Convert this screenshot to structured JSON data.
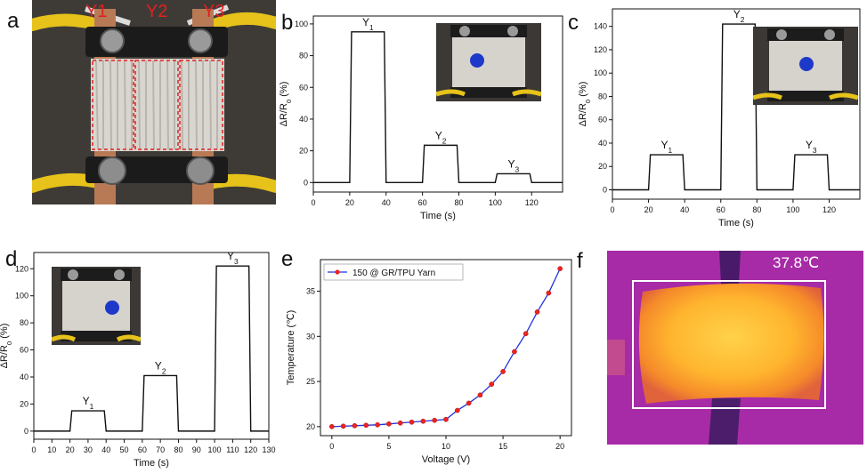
{
  "panels": {
    "a": {
      "letter": "a",
      "labels": [
        "Y1",
        "Y2",
        "Y3"
      ]
    },
    "b": {
      "letter": "b"
    },
    "c": {
      "letter": "c"
    },
    "d": {
      "letter": "d"
    },
    "e": {
      "letter": "e"
    },
    "f": {
      "letter": "f",
      "temperature": "37.8℃"
    }
  },
  "chart_data": [
    {
      "id": "b",
      "type": "line",
      "xlabel": "Time (s)",
      "ylabel": "ΔR/R0 (%)",
      "xlim": [
        0,
        137
      ],
      "ylim": [
        -6,
        105
      ],
      "xticks": [
        0,
        20,
        40,
        60,
        80,
        100,
        120
      ],
      "yticks": [
        0,
        20,
        40,
        60,
        80,
        100
      ],
      "x": [
        0,
        20,
        21,
        39,
        40,
        60,
        61,
        79,
        80,
        100,
        101,
        119,
        120,
        137
      ],
      "y": [
        0,
        0,
        95,
        95,
        0,
        0,
        23.5,
        23.5,
        0,
        0,
        5.5,
        5.5,
        0,
        0
      ],
      "peak_labels": [
        {
          "x": 30,
          "y": 95,
          "label": "Y1"
        },
        {
          "x": 70,
          "y": 23.5,
          "label": "Y2"
        },
        {
          "x": 110,
          "y": 5.5,
          "label": "Y3"
        }
      ]
    },
    {
      "id": "c",
      "type": "line",
      "xlabel": "Time (s)",
      "ylabel": "ΔR/R0 (%)",
      "xlim": [
        0,
        137
      ],
      "ylim": [
        -8,
        155
      ],
      "xticks": [
        0,
        20,
        40,
        60,
        80,
        100,
        120
      ],
      "yticks": [
        0,
        20,
        40,
        60,
        80,
        100,
        120,
        140
      ],
      "x": [
        0,
        20,
        21,
        39,
        40,
        60,
        61,
        79,
        80,
        100,
        101,
        119,
        120,
        137
      ],
      "y": [
        0,
        0,
        30,
        30,
        0,
        0,
        142,
        142,
        0,
        0,
        30,
        30,
        0,
        0
      ],
      "peak_labels": [
        {
          "x": 30,
          "y": 30,
          "label": "Y1"
        },
        {
          "x": 70,
          "y": 142,
          "label": "Y2"
        },
        {
          "x": 110,
          "y": 30,
          "label": "Y3"
        }
      ]
    },
    {
      "id": "d",
      "type": "line",
      "xlabel": "Time (s)",
      "ylabel": "ΔR/R0 (%)",
      "xlim": [
        0,
        130
      ],
      "ylim": [
        -6,
        132
      ],
      "xticks": [
        0,
        10,
        20,
        30,
        40,
        50,
        60,
        70,
        80,
        90,
        100,
        110,
        120,
        130
      ],
      "yticks": [
        0,
        20,
        40,
        60,
        80,
        100,
        120
      ],
      "x": [
        0,
        20,
        21,
        39,
        40,
        60,
        61,
        79,
        80,
        100,
        101,
        119,
        120,
        130
      ],
      "y": [
        0,
        0,
        15,
        15,
        0,
        0,
        41,
        41,
        0,
        0,
        122,
        122,
        0,
        0
      ],
      "peak_labels": [
        {
          "x": 30,
          "y": 15,
          "label": "Y1"
        },
        {
          "x": 70,
          "y": 41,
          "label": "Y2"
        },
        {
          "x": 110,
          "y": 122,
          "label": "Y3"
        }
      ]
    },
    {
      "id": "e",
      "type": "line",
      "xlabel": "Voltage (V)",
      "ylabel": "Temperature (℃)",
      "xlim": [
        -1,
        21
      ],
      "ylim": [
        19,
        38.5
      ],
      "xticks": [
        0,
        5,
        10,
        15,
        20
      ],
      "yticks": [
        20,
        25,
        30,
        35
      ],
      "series": [
        {
          "name": "150 @ GR/TPU Yarn",
          "line_color": "#2233dd",
          "marker_color": "#ee2222",
          "x": [
            0,
            1,
            2,
            3,
            4,
            5,
            6,
            7,
            8,
            9,
            10,
            11,
            12,
            13,
            14,
            15,
            16,
            17,
            18,
            19,
            20
          ],
          "y": [
            20.0,
            20.05,
            20.1,
            20.15,
            20.2,
            20.3,
            20.4,
            20.5,
            20.6,
            20.7,
            20.8,
            21.8,
            22.6,
            23.5,
            24.7,
            26.1,
            28.3,
            30.3,
            32.7,
            34.8,
            37.5
          ]
        }
      ]
    }
  ]
}
